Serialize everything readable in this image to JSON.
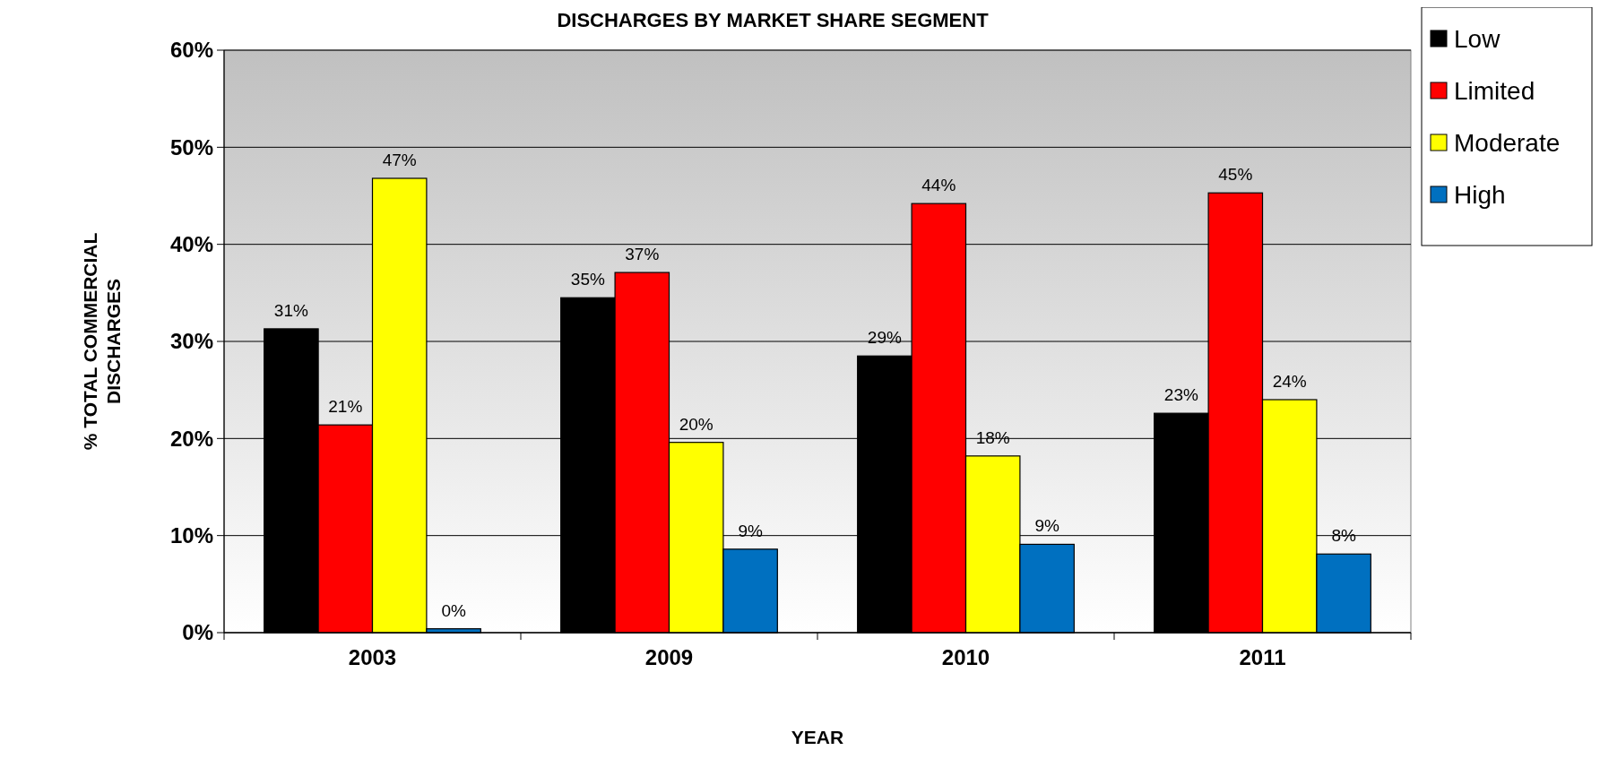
{
  "chart_data": {
    "type": "bar",
    "title": "DISCHARGES BY MARKET SHARE SEGMENT",
    "xlabel": "YEAR",
    "ylabel": "% TOTAL COMMERCIAL DISCHARGES",
    "categories": [
      "2003",
      "2009",
      "2010",
      "2011"
    ],
    "series": [
      {
        "name": "Low",
        "color": "#000000",
        "values": [
          31.3,
          34.5,
          28.5,
          22.6
        ],
        "value_labels": [
          "31%",
          "35%",
          "29%",
          "23%"
        ]
      },
      {
        "name": "Limited",
        "color": "#ff0000",
        "values": [
          21.4,
          37.1,
          44.2,
          45.3
        ],
        "value_labels": [
          "21%",
          "37%",
          "44%",
          "45%"
        ]
      },
      {
        "name": "Moderate",
        "color": "#ffff00",
        "values": [
          46.8,
          19.6,
          18.2,
          24.0
        ],
        "value_labels": [
          "47%",
          "20%",
          "18%",
          "24%"
        ]
      },
      {
        "name": "High",
        "color": "#0070c0",
        "values": [
          0.4,
          8.6,
          9.1,
          8.1
        ],
        "value_labels": [
          "0%",
          "9%",
          "9%",
          "8%"
        ]
      }
    ],
    "ylim": [
      0,
      60
    ],
    "yticks": [
      {
        "value": 0,
        "label": "0%"
      },
      {
        "value": 10,
        "label": "10%"
      },
      {
        "value": 20,
        "label": "20%"
      },
      {
        "value": 30,
        "label": "30%"
      },
      {
        "value": 40,
        "label": "40%"
      },
      {
        "value": 50,
        "label": "50%"
      },
      {
        "value": 60,
        "label": "60%"
      }
    ],
    "grid": "y",
    "legend": "top right"
  }
}
